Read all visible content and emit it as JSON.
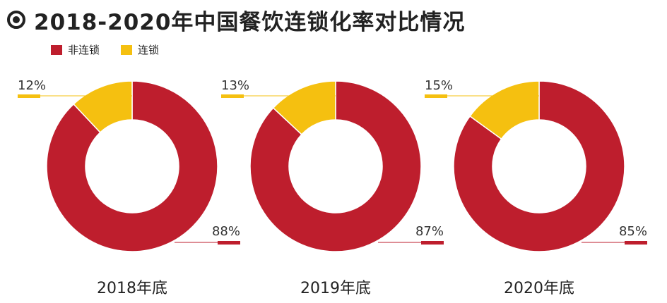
{
  "title": "2018-2020年中国餐饮连锁化率对比情况",
  "legend": [
    {
      "label": "非连锁",
      "color": "#be1e2d"
    },
    {
      "label": "连锁",
      "color": "#f5c010"
    }
  ],
  "chart_data": [
    {
      "type": "pie",
      "variant": "donut",
      "xlabel": "2018年底",
      "categories": [
        "非连锁",
        "连锁"
      ],
      "values": [
        88,
        12
      ],
      "value_labels": [
        "88%",
        "12%"
      ],
      "colors": [
        "#be1e2d",
        "#f5c010"
      ]
    },
    {
      "type": "pie",
      "variant": "donut",
      "xlabel": "2019年底",
      "categories": [
        "非连锁",
        "连锁"
      ],
      "values": [
        87,
        13
      ],
      "value_labels": [
        "87%",
        "13%"
      ],
      "colors": [
        "#be1e2d",
        "#f5c010"
      ]
    },
    {
      "type": "pie",
      "variant": "donut",
      "xlabel": "2020年底",
      "categories": [
        "非连锁",
        "连锁"
      ],
      "values": [
        85,
        15
      ],
      "value_labels": [
        "85%",
        "15%"
      ],
      "colors": [
        "#be1e2d",
        "#f5c010"
      ]
    }
  ]
}
